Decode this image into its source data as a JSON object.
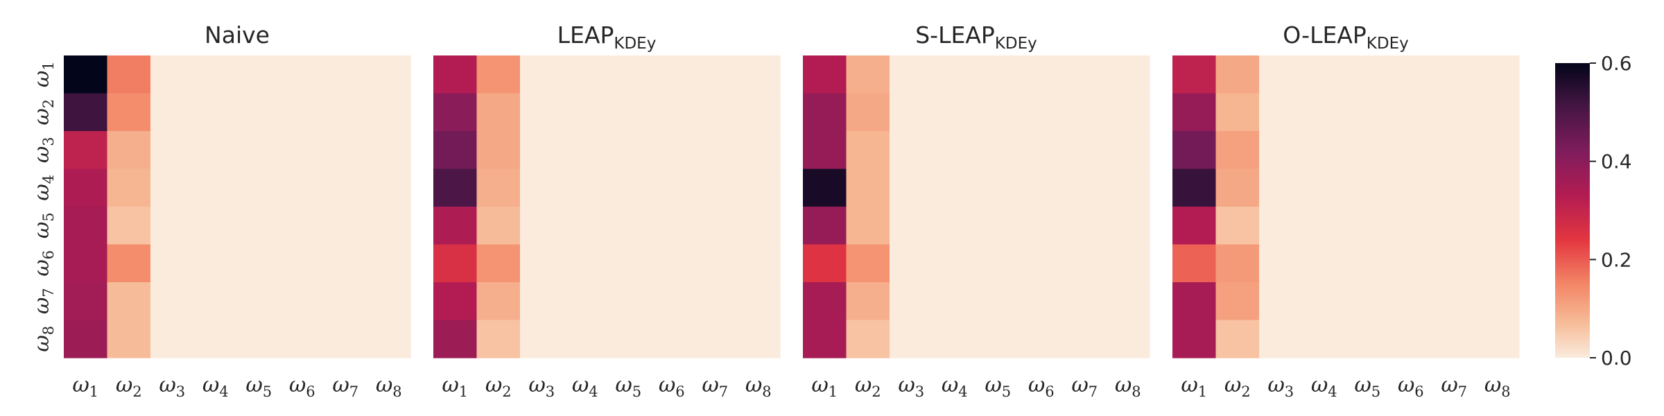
{
  "chart_data": {
    "type": "heatmap",
    "panel_count": 4,
    "row_labels": [
      "ω1",
      "ω2",
      "ω3",
      "ω4",
      "ω5",
      "ω6",
      "ω7",
      "ω8"
    ],
    "col_labels": [
      "ω1",
      "ω2",
      "ω3",
      "ω4",
      "ω5",
      "ω6",
      "ω7",
      "ω8"
    ],
    "tick_symbol": "ω",
    "tick_indices": [
      "1",
      "2",
      "3",
      "4",
      "5",
      "6",
      "7",
      "8"
    ],
    "colormap": "rocket_r",
    "vmin": 0.0,
    "vmax": 0.6,
    "colorbar_ticks": [
      "0.0",
      "0.2",
      "0.4",
      "0.6"
    ],
    "panels": [
      {
        "title_main": "Naive",
        "title_sub": "",
        "values": [
          [
            0.6,
            0.16,
            0,
            0,
            0,
            0,
            0,
            0
          ],
          [
            0.52,
            0.14,
            0,
            0,
            0,
            0,
            0,
            0
          ],
          [
            0.31,
            0.09,
            0,
            0,
            0,
            0,
            0,
            0
          ],
          [
            0.34,
            0.08,
            0,
            0,
            0,
            0,
            0,
            0
          ],
          [
            0.35,
            0.06,
            0,
            0,
            0,
            0,
            0,
            0
          ],
          [
            0.35,
            0.14,
            0,
            0,
            0,
            0,
            0,
            0
          ],
          [
            0.36,
            0.07,
            0,
            0,
            0,
            0,
            0,
            0
          ],
          [
            0.37,
            0.07,
            0,
            0,
            0,
            0,
            0,
            0
          ]
        ]
      },
      {
        "title_main": "LEAP",
        "title_sub": "KDEy",
        "values": [
          [
            0.33,
            0.13,
            0,
            0,
            0,
            0,
            0,
            0
          ],
          [
            0.4,
            0.1,
            0,
            0,
            0,
            0,
            0,
            0
          ],
          [
            0.44,
            0.1,
            0,
            0,
            0,
            0,
            0,
            0
          ],
          [
            0.5,
            0.09,
            0,
            0,
            0,
            0,
            0,
            0
          ],
          [
            0.34,
            0.07,
            0,
            0,
            0,
            0,
            0,
            0
          ],
          [
            0.26,
            0.13,
            0,
            0,
            0,
            0,
            0,
            0
          ],
          [
            0.33,
            0.09,
            0,
            0,
            0,
            0,
            0,
            0
          ],
          [
            0.37,
            0.06,
            0,
            0,
            0,
            0,
            0,
            0
          ]
        ]
      },
      {
        "title_main": "S-LEAP",
        "title_sub": "KDEy",
        "values": [
          [
            0.33,
            0.09,
            0,
            0,
            0,
            0,
            0,
            0
          ],
          [
            0.38,
            0.1,
            0,
            0,
            0,
            0,
            0,
            0
          ],
          [
            0.38,
            0.08,
            0,
            0,
            0,
            0,
            0,
            0
          ],
          [
            0.57,
            0.08,
            0,
            0,
            0,
            0,
            0,
            0
          ],
          [
            0.38,
            0.08,
            0,
            0,
            0,
            0,
            0,
            0
          ],
          [
            0.25,
            0.13,
            0,
            0,
            0,
            0,
            0,
            0
          ],
          [
            0.35,
            0.09,
            0,
            0,
            0,
            0,
            0,
            0
          ],
          [
            0.35,
            0.06,
            0,
            0,
            0,
            0,
            0,
            0
          ]
        ]
      },
      {
        "title_main": "O-LEAP",
        "title_sub": "KDEy",
        "values": [
          [
            0.31,
            0.1,
            0,
            0,
            0,
            0,
            0,
            0
          ],
          [
            0.38,
            0.08,
            0,
            0,
            0,
            0,
            0,
            0
          ],
          [
            0.44,
            0.11,
            0,
            0,
            0,
            0,
            0,
            0
          ],
          [
            0.53,
            0.1,
            0,
            0,
            0,
            0,
            0,
            0
          ],
          [
            0.33,
            0.06,
            0,
            0,
            0,
            0,
            0,
            0
          ],
          [
            0.19,
            0.12,
            0,
            0,
            0,
            0,
            0,
            0
          ],
          [
            0.35,
            0.11,
            0,
            0,
            0,
            0,
            0,
            0
          ],
          [
            0.35,
            0.06,
            0,
            0,
            0,
            0,
            0,
            0
          ]
        ]
      }
    ]
  }
}
